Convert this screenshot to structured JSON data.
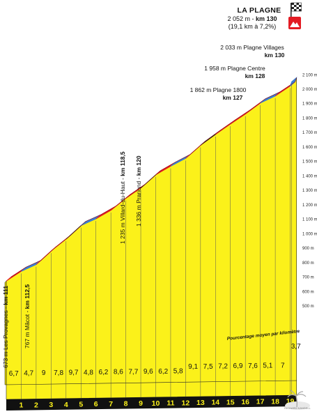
{
  "chart_data": {
    "type": "area",
    "title": "",
    "summit": {
      "name": "LA PLAGNE",
      "line1_alt": "2 052 m - ",
      "line1_km": "km 130",
      "line2": "(19,1 km à 7,2%)"
    },
    "y_axis": {
      "range": [
        480,
        2130
      ],
      "ticks": [
        "500 m",
        "600 m",
        "700 m",
        "800 m",
        "900 m",
        "1 000 m",
        "1 100 m",
        "1 200 m",
        "1 300 m",
        "1 400 m",
        "1 500 m",
        "1 600 m",
        "1 700 m",
        "1 800 m",
        "1 900 m",
        "2 000 m",
        "2 100 m"
      ]
    },
    "x_axis": {
      "unit": "km from start of climb",
      "tick_labels": [
        "1",
        "2",
        "3",
        "4",
        "5",
        "6",
        "7",
        "8",
        "9",
        "10",
        "11",
        "12",
        "13",
        "14",
        "15",
        "16",
        "17",
        "18",
        "19"
      ]
    },
    "gradient_legend": "Pourcentage moyen par kilomètre",
    "gradients": [
      "6,7",
      "4,7",
      "9",
      "7,8",
      "9,7",
      "4,8",
      "6,2",
      "8,6",
      "7,7",
      "9,6",
      "6,2",
      "5,8",
      "9,1",
      "7,5",
      "7,2",
      "6,9",
      "7,6",
      "5,1",
      "7",
      "3,7"
    ],
    "profile_km": [
      0,
      1,
      2,
      3,
      4,
      5,
      6,
      7,
      8,
      9,
      10,
      11,
      12,
      13,
      14,
      15,
      16,
      17,
      18,
      19,
      19.1
    ],
    "profile_alt": [
      673,
      740,
      787,
      881,
      963,
      1057,
      1103,
      1162,
      1245,
      1316,
      1408,
      1467,
      1521,
      1612,
      1687,
      1759,
      1828,
      1904,
      1953,
      2022,
      2052
    ],
    "segment_colors": [
      "#e31b23",
      "#3a7fd6",
      "#e31b23",
      "#e31b23",
      "#1a1a1a",
      "#3a7fd6",
      "#e31b23",
      "#e31b23",
      "#e31b23",
      "#1a1a1a",
      "#e31b23",
      "#3a7fd6",
      "#e31b23",
      "#1a1a1a",
      "#e31b23",
      "#e31b23",
      "#e31b23",
      "#3a7fd6",
      "#e31b23",
      "#3a7fd6"
    ],
    "waypoints": [
      {
        "name": "673 m Les Provagnes - ",
        "km_label": "km 111"
      },
      {
        "name": "767 m Mâcot - ",
        "km_label": "km 112,5"
      },
      {
        "name": "1 235 m Villard-du-Haut - ",
        "km_label": "km 118,5"
      },
      {
        "name": "1 336 m Prariond - ",
        "km_label": "km 120"
      },
      {
        "name": "1 862 m Plagne 1800",
        "km_label": "km 127"
      },
      {
        "name": "1 958 m Plagne Centre",
        "km_label": "km 128"
      },
      {
        "name": "2 033 m Plagne Villages",
        "km_label": "km 130"
      }
    ],
    "watermark": "RICHARD KANDELL",
    "colors": {
      "fill": "#fbf11a",
      "road_red": "#e31b23",
      "road_blue": "#3a7fd6",
      "road_black": "#1a1a1a",
      "base": "#111111",
      "flag_red": "#e31b23"
    },
    "icons": [
      "summit-flag-icon",
      "mountain-icon",
      "palm-tree-icon"
    ]
  }
}
